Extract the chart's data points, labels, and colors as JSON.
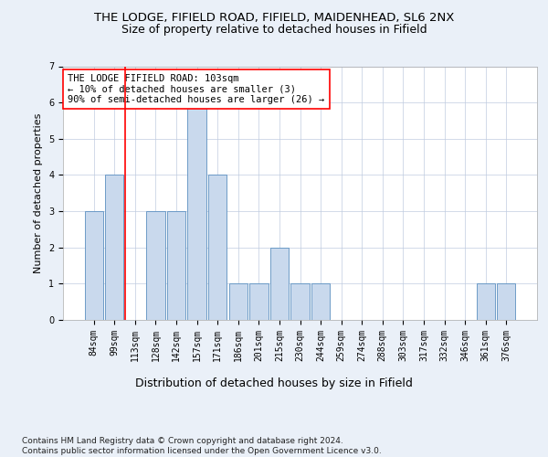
{
  "title1": "THE LODGE, FIFIELD ROAD, FIFIELD, MAIDENHEAD, SL6 2NX",
  "title2": "Size of property relative to detached houses in Fifield",
  "xlabel": "Distribution of detached houses by size in Fifield",
  "ylabel": "Number of detached properties",
  "categories": [
    "84sqm",
    "99sqm",
    "113sqm",
    "128sqm",
    "142sqm",
    "157sqm",
    "171sqm",
    "186sqm",
    "201sqm",
    "215sqm",
    "230sqm",
    "244sqm",
    "259sqm",
    "274sqm",
    "288sqm",
    "303sqm",
    "317sqm",
    "332sqm",
    "346sqm",
    "361sqm",
    "376sqm"
  ],
  "values": [
    3,
    4,
    0,
    3,
    3,
    6,
    4,
    1,
    1,
    2,
    1,
    1,
    0,
    0,
    0,
    0,
    0,
    0,
    0,
    1,
    1
  ],
  "bar_color": "#c9d9ed",
  "bar_edge_color": "#5b8fc0",
  "vline_x": 1.5,
  "vline_color": "red",
  "annotation_text": "THE LODGE FIFIELD ROAD: 103sqm\n← 10% of detached houses are smaller (3)\n90% of semi-detached houses are larger (26) →",
  "annotation_box_color": "white",
  "annotation_box_edge_color": "red",
  "ylim": [
    0,
    7
  ],
  "yticks": [
    0,
    1,
    2,
    3,
    4,
    5,
    6,
    7
  ],
  "footnote": "Contains HM Land Registry data © Crown copyright and database right 2024.\nContains public sector information licensed under the Open Government Licence v3.0.",
  "background_color": "#eaf0f8",
  "plot_background": "white",
  "title1_fontsize": 9.5,
  "title2_fontsize": 9,
  "xlabel_fontsize": 9,
  "ylabel_fontsize": 8,
  "tick_fontsize": 7,
  "annotation_fontsize": 7.5,
  "footnote_fontsize": 6.5
}
